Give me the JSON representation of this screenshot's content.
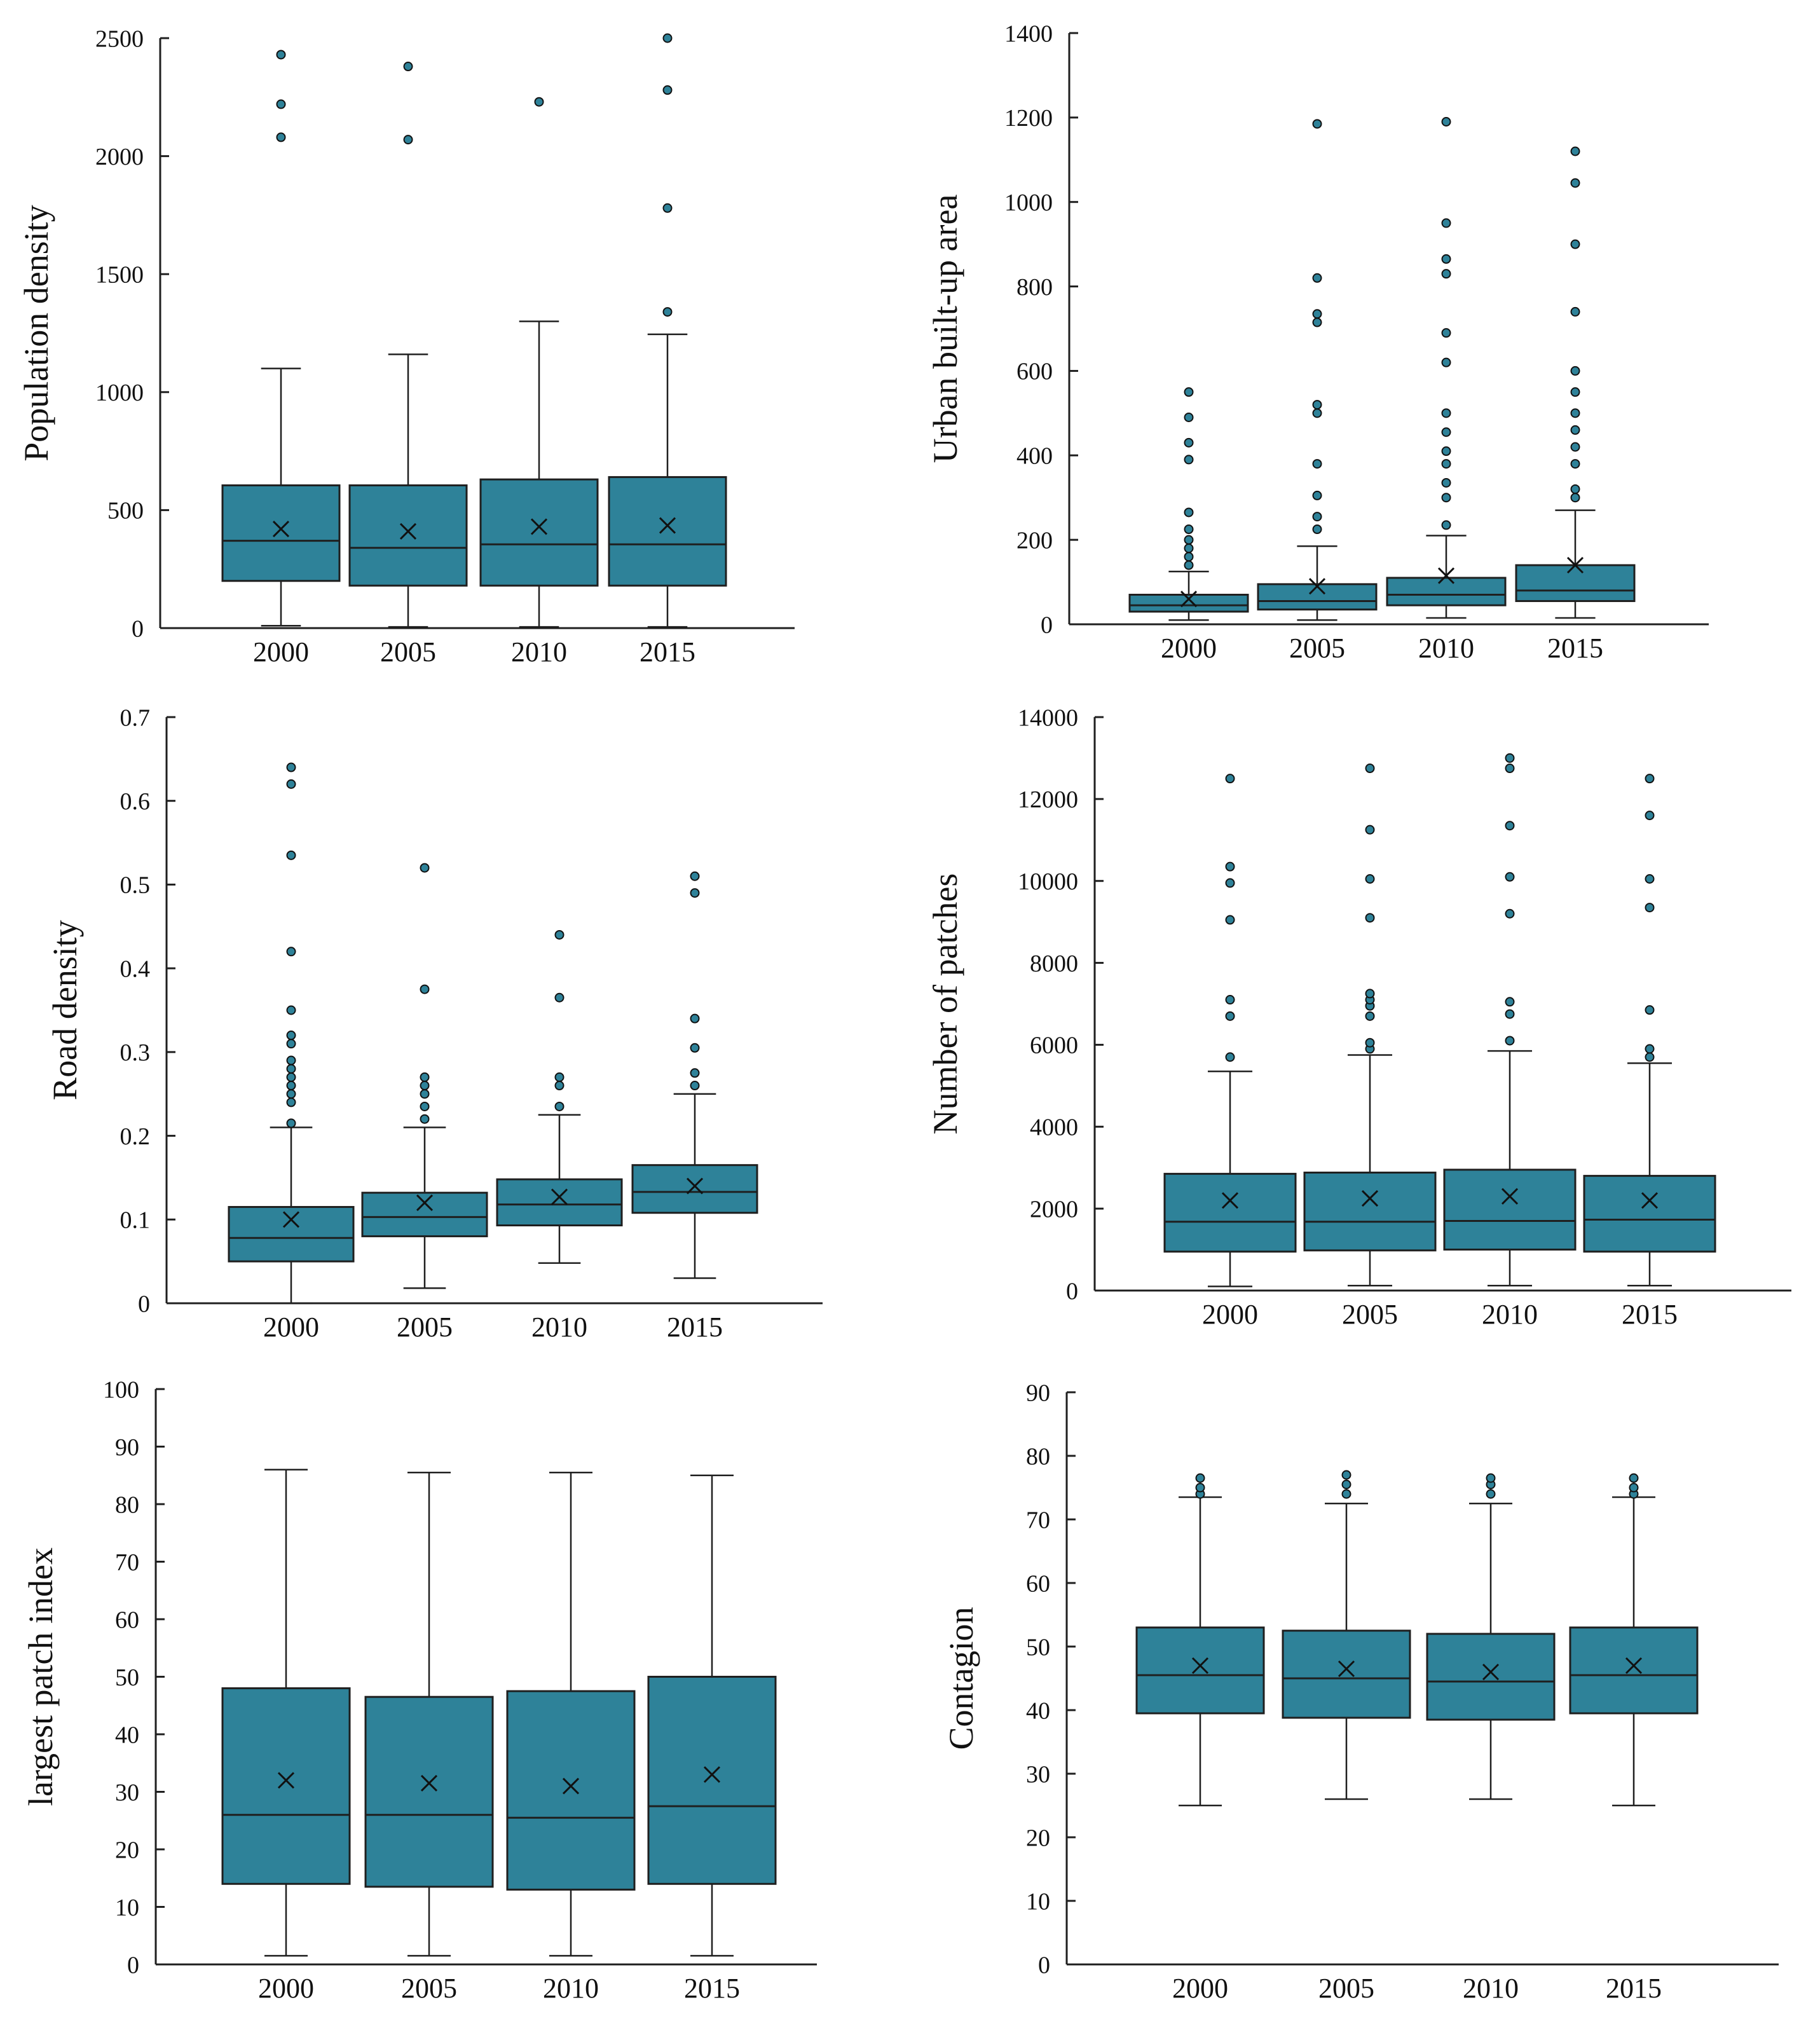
{
  "figure": {
    "colors": {
      "box_fill": "#2e8299",
      "box_stroke": "#1f1f1f",
      "axis": "#1f1f1f",
      "outlier_fill": "#2e8299"
    },
    "mean_marker": "x-cross"
  },
  "chart_data": [
    {
      "type": "box",
      "title": "",
      "xlabel": "",
      "ylabel": "Population density",
      "categories": [
        "2000",
        "2005",
        "2010",
        "2015"
      ],
      "ylim": [
        0,
        2500
      ],
      "yticks": [
        0,
        500,
        1000,
        1500,
        2000,
        2500
      ],
      "grid": false,
      "boxes": [
        {
          "min": 10,
          "q1": 200,
          "median": 370,
          "q3": 605,
          "max": 1100,
          "mean": 420,
          "outliers": [
            2080,
            2220,
            2430
          ]
        },
        {
          "min": 5,
          "q1": 180,
          "median": 340,
          "q3": 605,
          "max": 1160,
          "mean": 410,
          "outliers": [
            2070,
            2380
          ]
        },
        {
          "min": 5,
          "q1": 180,
          "median": 355,
          "q3": 630,
          "max": 1300,
          "mean": 430,
          "outliers": [
            2230
          ]
        },
        {
          "min": 5,
          "q1": 180,
          "median": 355,
          "q3": 640,
          "max": 1245,
          "mean": 435,
          "outliers": [
            1340,
            1780,
            2280,
            2500
          ]
        }
      ]
    },
    {
      "type": "box",
      "title": "",
      "xlabel": "",
      "ylabel": "Urban built-up area",
      "categories": [
        "2000",
        "2005",
        "2010",
        "2015"
      ],
      "ylim": [
        0,
        1400
      ],
      "yticks": [
        0,
        200,
        400,
        600,
        800,
        1000,
        1200,
        1400
      ],
      "grid": false,
      "boxes": [
        {
          "min": 10,
          "q1": 30,
          "median": 45,
          "q3": 70,
          "max": 125,
          "mean": 60,
          "outliers": [
            140,
            160,
            180,
            200,
            225,
            265,
            390,
            430,
            490,
            550
          ]
        },
        {
          "min": 10,
          "q1": 35,
          "median": 55,
          "q3": 95,
          "max": 185,
          "mean": 90,
          "outliers": [
            225,
            255,
            305,
            380,
            500,
            520,
            715,
            735,
            820,
            1185
          ]
        },
        {
          "min": 15,
          "q1": 45,
          "median": 70,
          "q3": 110,
          "max": 210,
          "mean": 115,
          "outliers": [
            235,
            300,
            335,
            380,
            410,
            455,
            500,
            620,
            690,
            830,
            865,
            950,
            1190
          ]
        },
        {
          "min": 15,
          "q1": 55,
          "median": 80,
          "q3": 140,
          "max": 270,
          "mean": 140,
          "outliers": [
            300,
            320,
            380,
            420,
            460,
            500,
            550,
            600,
            740,
            900,
            1045,
            1120
          ]
        }
      ]
    },
    {
      "type": "box",
      "title": "",
      "xlabel": "",
      "ylabel": "Road density",
      "categories": [
        "2000",
        "2005",
        "2010",
        "2015"
      ],
      "ylim": [
        0,
        0.7
      ],
      "yticks": [
        0,
        0.1,
        0.2,
        0.3,
        0.4,
        0.5,
        0.6,
        0.7
      ],
      "grid": false,
      "boxes": [
        {
          "min": 0.0,
          "q1": 0.05,
          "median": 0.078,
          "q3": 0.115,
          "max": 0.21,
          "mean": 0.1,
          "outliers": [
            0.215,
            0.24,
            0.25,
            0.26,
            0.27,
            0.28,
            0.29,
            0.31,
            0.32,
            0.35,
            0.42,
            0.535,
            0.62,
            0.64
          ]
        },
        {
          "min": 0.018,
          "q1": 0.08,
          "median": 0.103,
          "q3": 0.132,
          "max": 0.21,
          "mean": 0.12,
          "outliers": [
            0.22,
            0.235,
            0.25,
            0.26,
            0.27,
            0.375,
            0.52
          ]
        },
        {
          "min": 0.048,
          "q1": 0.093,
          "median": 0.118,
          "q3": 0.148,
          "max": 0.225,
          "mean": 0.127,
          "outliers": [
            0.235,
            0.26,
            0.27,
            0.365,
            0.44
          ]
        },
        {
          "min": 0.03,
          "q1": 0.108,
          "median": 0.133,
          "q3": 0.165,
          "max": 0.25,
          "mean": 0.14,
          "outliers": [
            0.26,
            0.275,
            0.305,
            0.34,
            0.49,
            0.51
          ]
        }
      ]
    },
    {
      "type": "box",
      "title": "",
      "xlabel": "",
      "ylabel": "Number of patches",
      "categories": [
        "2000",
        "2005",
        "2010",
        "2015"
      ],
      "ylim": [
        0,
        14000
      ],
      "yticks": [
        0,
        2000,
        4000,
        6000,
        8000,
        10000,
        12000,
        14000
      ],
      "grid": false,
      "boxes": [
        {
          "min": 100,
          "q1": 950,
          "median": 1680,
          "q3": 2850,
          "max": 5350,
          "mean": 2200,
          "outliers": [
            5700,
            6700,
            7100,
            9050,
            9950,
            10350,
            12500
          ]
        },
        {
          "min": 120,
          "q1": 980,
          "median": 1680,
          "q3": 2880,
          "max": 5750,
          "mean": 2250,
          "outliers": [
            5900,
            6050,
            6700,
            6950,
            7100,
            7250,
            9100,
            10050,
            11250,
            12750
          ]
        },
        {
          "min": 120,
          "q1": 1000,
          "median": 1700,
          "q3": 2950,
          "max": 5850,
          "mean": 2300,
          "outliers": [
            6100,
            6750,
            7050,
            9200,
            10100,
            11350,
            12750,
            13000
          ]
        },
        {
          "min": 120,
          "q1": 950,
          "median": 1730,
          "q3": 2800,
          "max": 5550,
          "mean": 2200,
          "outliers": [
            5700,
            5900,
            6850,
            9350,
            10050,
            11600,
            12500
          ]
        }
      ]
    },
    {
      "type": "box",
      "title": "",
      "xlabel": "",
      "ylabel": "largest  patch  index",
      "categories": [
        "2000",
        "2005",
        "2010",
        "2015"
      ],
      "ylim": [
        0,
        100
      ],
      "yticks": [
        0,
        10,
        20,
        30,
        40,
        50,
        60,
        70,
        80,
        90,
        100
      ],
      "grid": false,
      "boxes": [
        {
          "min": 1.5,
          "q1": 14,
          "median": 26,
          "q3": 48,
          "max": 86,
          "mean": 32,
          "outliers": []
        },
        {
          "min": 1.5,
          "q1": 13.5,
          "median": 26,
          "q3": 46.5,
          "max": 85.5,
          "mean": 31.5,
          "outliers": []
        },
        {
          "min": 1.5,
          "q1": 13,
          "median": 25.5,
          "q3": 47.5,
          "max": 85.5,
          "mean": 31,
          "outliers": []
        },
        {
          "min": 1.5,
          "q1": 14,
          "median": 27.5,
          "q3": 50,
          "max": 85,
          "mean": 33,
          "outliers": []
        }
      ]
    },
    {
      "type": "box",
      "title": "",
      "xlabel": "",
      "ylabel": "Contagion",
      "categories": [
        "2000",
        "2005",
        "2010",
        "2015"
      ],
      "ylim": [
        0,
        90
      ],
      "yticks": [
        0,
        10,
        20,
        30,
        40,
        50,
        60,
        70,
        80,
        90
      ],
      "grid": false,
      "boxes": [
        {
          "min": 25,
          "q1": 39.5,
          "median": 45.5,
          "q3": 53,
          "max": 73.5,
          "mean": 47,
          "outliers": [
            74,
            75,
            76.5
          ]
        },
        {
          "min": 26,
          "q1": 38.8,
          "median": 45,
          "q3": 52.5,
          "max": 72.5,
          "mean": 46.5,
          "outliers": [
            74,
            75.5,
            77
          ]
        },
        {
          "min": 26,
          "q1": 38.5,
          "median": 44.5,
          "q3": 52,
          "max": 72.5,
          "mean": 46,
          "outliers": [
            74,
            75.5,
            76.5
          ]
        },
        {
          "min": 25,
          "q1": 39.5,
          "median": 45.5,
          "q3": 53,
          "max": 73.5,
          "mean": 47,
          "outliers": [
            74,
            75,
            76.5
          ]
        }
      ]
    }
  ]
}
